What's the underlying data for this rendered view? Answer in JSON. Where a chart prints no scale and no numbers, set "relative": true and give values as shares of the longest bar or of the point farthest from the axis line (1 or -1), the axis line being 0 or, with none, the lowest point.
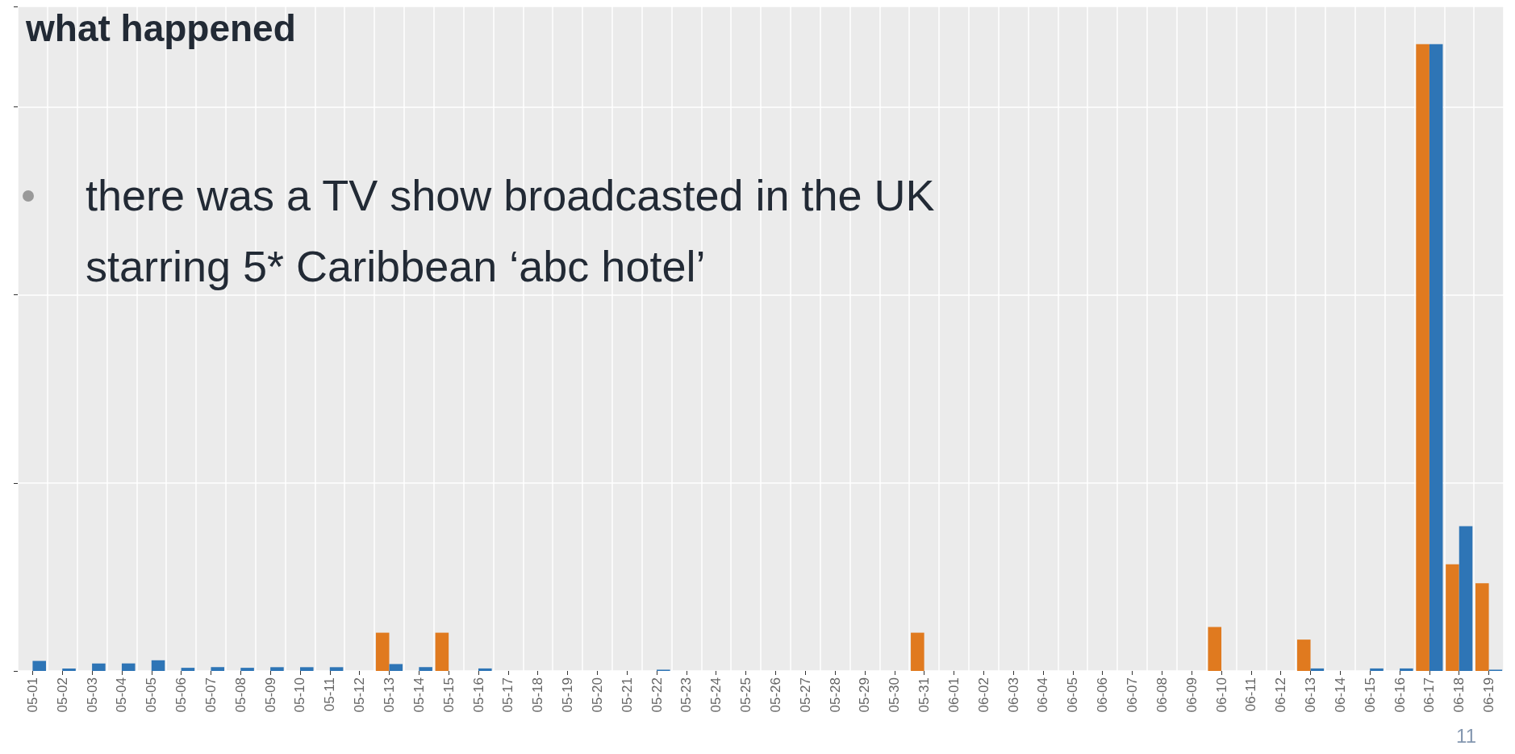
{
  "chart_data": {
    "type": "bar",
    "title": "what happened",
    "relative": true,
    "grid": true,
    "categories": [
      "05-01",
      "05-02",
      "05-03",
      "05-04",
      "05-05",
      "05-06",
      "05-07",
      "05-08",
      "05-09",
      "05-10",
      "05-11",
      "05-12",
      "05-13",
      "05-14",
      "05-15",
      "05-16",
      "05-17",
      "05-18",
      "05-19",
      "05-20",
      "05-21",
      "05-22",
      "05-23",
      "05-24",
      "05-25",
      "05-26",
      "05-27",
      "05-28",
      "05-29",
      "05-30",
      "05-31",
      "06-01",
      "06-02",
      "06-03",
      "06-04",
      "06-05",
      "06-06",
      "06-07",
      "06-08",
      "06-09",
      "06-10",
      "06-11",
      "06-12",
      "06-13",
      "06-14",
      "06-15",
      "06-16",
      "06-17",
      "06-18",
      "06-19"
    ],
    "series": [
      {
        "color": "#e07a1f",
        "values": [
          null,
          null,
          null,
          null,
          null,
          null,
          null,
          null,
          null,
          null,
          null,
          null,
          0.061,
          null,
          0.061,
          null,
          null,
          null,
          null,
          null,
          null,
          null,
          null,
          null,
          null,
          null,
          null,
          null,
          null,
          null,
          0.061,
          null,
          null,
          null,
          null,
          null,
          null,
          null,
          null,
          null,
          0.07,
          null,
          null,
          0.05,
          null,
          null,
          null,
          1,
          0.17,
          0.14
        ]
      },
      {
        "color": "#2e75b6",
        "values": [
          0.016,
          0.004,
          0.012,
          0.012,
          0.017,
          0.005,
          0.006,
          0.005,
          0.006,
          0.006,
          0.006,
          null,
          0.011,
          0.006,
          null,
          0.004,
          null,
          null,
          null,
          null,
          null,
          0.002,
          null,
          null,
          null,
          null,
          null,
          null,
          null,
          null,
          null,
          null,
          null,
          null,
          null,
          null,
          null,
          null,
          null,
          null,
          null,
          null,
          null,
          0.004,
          null,
          0.004,
          0.004,
          1,
          0.231,
          0.002
        ]
      }
    ],
    "annotations": [
      "there was a TV show broadcasted in the UK starring 5* Caribbean ‘abc hotel’",
      "11"
    ]
  }
}
